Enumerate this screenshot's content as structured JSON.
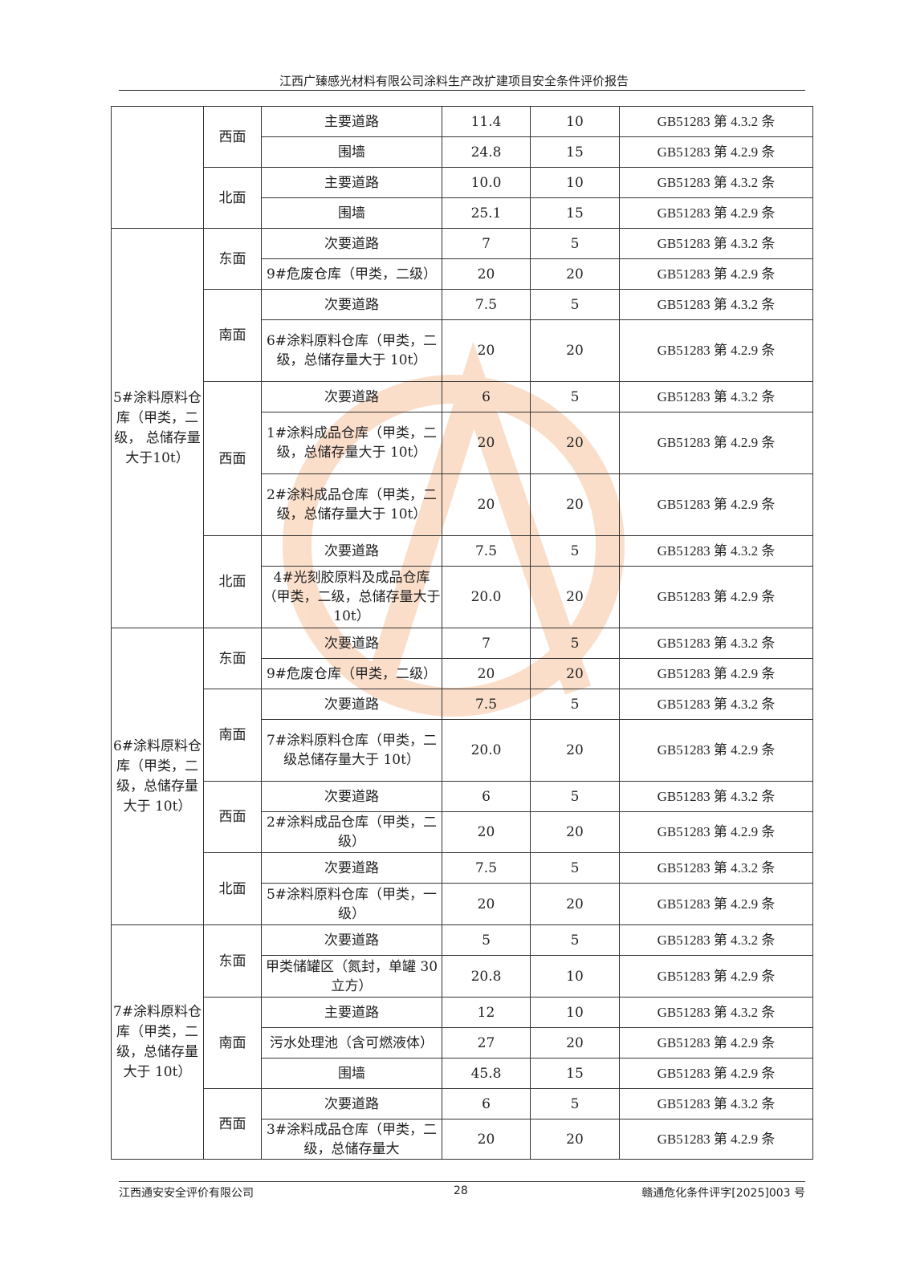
{
  "header": {
    "title": "江西广臻感光材料有限公司涂料生产改扩建项目安全条件评价报告"
  },
  "table": {
    "groups": [
      {
        "object": "",
        "directions": [
          {
            "dir": "西面",
            "rows": [
              {
                "item": "主要道路",
                "actual": "11.4",
                "required": "10",
                "basis": "GB51283 第 4.3.2 条"
              },
              {
                "item": "围墙",
                "actual": "24.8",
                "required": "15",
                "basis": "GB51283 第 4.2.9 条"
              }
            ]
          },
          {
            "dir": "北面",
            "rows": [
              {
                "item": "主要道路",
                "actual": "10.0",
                "required": "10",
                "basis": "GB51283 第 4.3.2 条"
              },
              {
                "item": "围墙",
                "actual": "25.1",
                "required": "15",
                "basis": "GB51283 第 4.2.9 条"
              }
            ]
          }
        ]
      },
      {
        "object": "5#涂料原料仓库（甲类，二级， 总储存量大于10t）",
        "directions": [
          {
            "dir": "东面",
            "rows": [
              {
                "item": "次要道路",
                "actual": "7",
                "required": "5",
                "basis": "GB51283 第 4.3.2 条"
              },
              {
                "item": "9#危废仓库（甲类，二级）",
                "actual": "20",
                "required": "20",
                "basis": "GB51283 第 4.2.9 条"
              }
            ]
          },
          {
            "dir": "南面",
            "rows": [
              {
                "item": "次要道路",
                "actual": "7.5",
                "required": "5",
                "basis": "GB51283 第 4.3.2 条"
              },
              {
                "item": "6#涂料原料仓库（甲类，二级，总储存量大于 10t）",
                "actual": "20",
                "required": "20",
                "basis": "GB51283 第 4.2.9 条"
              }
            ]
          },
          {
            "dir": "西面",
            "rows": [
              {
                "item": "次要道路",
                "actual": "6",
                "required": "5",
                "basis": "GB51283 第 4.3.2 条"
              },
              {
                "item": "1#涂料成品仓库（甲类，二级，总储存量大于 10t）",
                "actual": "20",
                "required": "20",
                "basis": "GB51283 第 4.2.9 条"
              },
              {
                "item": "2#涂料成品仓库（甲类，二级，总储存量大于 10t）",
                "actual": "20",
                "required": "20",
                "basis": "GB51283 第 4.2.9 条"
              }
            ]
          },
          {
            "dir": "北面",
            "rows": [
              {
                "item": "次要道路",
                "actual": "7.5",
                "required": "5",
                "basis": "GB51283 第 4.3.2 条"
              },
              {
                "item": "4#光刻胶原料及成品仓库（甲类，二级，总储存量大于 10t）",
                "actual": "20.0",
                "required": "20",
                "basis": "GB51283 第 4.2.9 条"
              }
            ]
          }
        ]
      },
      {
        "object": "6#涂料原料仓库（甲类，二级，总储存量大于 10t）",
        "directions": [
          {
            "dir": "东面",
            "rows": [
              {
                "item": "次要道路",
                "actual": "7",
                "required": "5",
                "basis": "GB51283 第 4.3.2 条"
              },
              {
                "item": "9#危废仓库（甲类，二级）",
                "actual": "20",
                "required": "20",
                "basis": "GB51283 第 4.2.9 条"
              }
            ]
          },
          {
            "dir": "南面",
            "rows": [
              {
                "item": "次要道路",
                "actual": "7.5",
                "required": "5",
                "basis": "GB51283 第 4.3.2 条"
              },
              {
                "item": "7#涂料原料仓库（甲类，二级总储存量大于 10t）",
                "actual": "20.0",
                "required": "20",
                "basis": "GB51283 第 4.2.9 条"
              }
            ]
          },
          {
            "dir": "西面",
            "rows": [
              {
                "item": "次要道路",
                "actual": "6",
                "required": "5",
                "basis": "GB51283 第 4.3.2 条"
              },
              {
                "item": "2#涂料成品仓库（甲类，二级）",
                "actual": "20",
                "required": "20",
                "basis": "GB51283 第 4.2.9 条"
              }
            ]
          },
          {
            "dir": "北面",
            "rows": [
              {
                "item": "次要道路",
                "actual": "7.5",
                "required": "5",
                "basis": "GB51283 第 4.3.2 条"
              },
              {
                "item": "5#涂料原料仓库（甲类，一级）",
                "actual": "20",
                "required": "20",
                "basis": "GB51283 第 4.2.9 条"
              }
            ]
          }
        ]
      },
      {
        "object": "7#涂料原料仓库（甲类，二级，总储存量大于 10t）",
        "directions": [
          {
            "dir": "东面",
            "rows": [
              {
                "item": "次要道路",
                "actual": "5",
                "required": "5",
                "basis": "GB51283 第 4.3.2 条"
              },
              {
                "item": "甲类储罐区（氮封，单罐 30 立方）",
                "actual": "20.8",
                "required": "10",
                "basis": "GB51283 第 4.2.9 条"
              }
            ]
          },
          {
            "dir": "南面",
            "rows": [
              {
                "item": "主要道路",
                "actual": "12",
                "required": "10",
                "basis": "GB51283 第 4.3.2 条"
              },
              {
                "item": "污水处理池（含可燃液体）",
                "actual": "27",
                "required": "20",
                "basis": "GB51283 第 4.2.9 条"
              },
              {
                "item": "围墙",
                "actual": "45.8",
                "required": "15",
                "basis": "GB51283 第 4.2.9 条"
              }
            ]
          },
          {
            "dir": "西面",
            "rows": [
              {
                "item": "次要道路",
                "actual": "6",
                "required": "5",
                "basis": "GB51283 第 4.3.2 条"
              },
              {
                "item": "3#涂料成品仓库（甲类，二级，总储存量大",
                "actual": "20",
                "required": "20",
                "basis": "GB51283 第 4.2.9 条"
              }
            ]
          }
        ]
      }
    ]
  },
  "watermark": {
    "text": "江西通安安全评价有限公司",
    "stamp": "江西通安",
    "logo": "SA",
    "colors": {
      "ring": "#f2a36b",
      "text": "#9a9a9a",
      "stamp": "#f08080",
      "logo": "#8cc8ec"
    }
  },
  "footer": {
    "company": "江西通安安全评价有限公司",
    "page": "28",
    "doc_no": "赣通危化条件评字[2025]003 号"
  }
}
